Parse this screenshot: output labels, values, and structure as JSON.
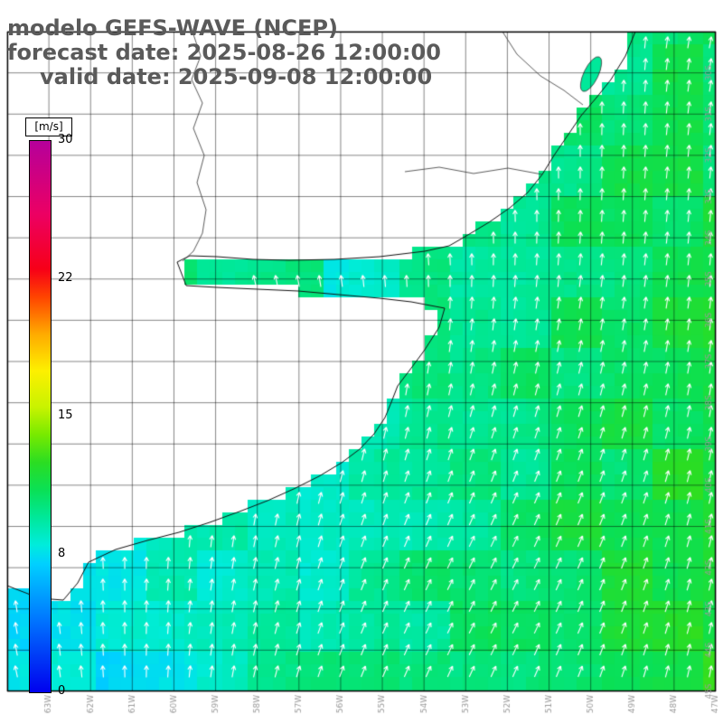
{
  "header": {
    "title_line": "modelo GEFS-WAVE (NCEP)",
    "forecast_line": "forecast date: 2025-08-26 12:00:00",
    "valid_line": "valid date: 2025-09-08 12:00:00"
  },
  "colorbar": {
    "unit": "[m/s]",
    "min": 0,
    "max": 30,
    "ticks": [
      {
        "label": "30",
        "pos": 0
      },
      {
        "label": "22",
        "pos": 0.25
      },
      {
        "label": "15",
        "pos": 0.5
      },
      {
        "label": "8",
        "pos": 0.75
      },
      {
        "label": "0",
        "pos": 1
      }
    ],
    "palette": [
      {
        "v": 0,
        "c": "#0000ee"
      },
      {
        "v": 4,
        "c": "#0077ff"
      },
      {
        "v": 7,
        "c": "#00d0ff"
      },
      {
        "v": 8,
        "c": "#00ecdc"
      },
      {
        "v": 9.5,
        "c": "#00e89a"
      },
      {
        "v": 11,
        "c": "#0ae055"
      },
      {
        "v": 12.5,
        "c": "#2bdd22"
      },
      {
        "v": 14,
        "c": "#77ea00"
      },
      {
        "v": 15.5,
        "c": "#c8f300"
      },
      {
        "v": 17.5,
        "c": "#fdf000"
      },
      {
        "v": 19.5,
        "c": "#ffaa00"
      },
      {
        "v": 21.5,
        "c": "#ff4400"
      },
      {
        "v": 23,
        "c": "#f70017"
      },
      {
        "v": 26,
        "c": "#ec0063"
      },
      {
        "v": 30,
        "c": "#b5009b"
      }
    ]
  },
  "map": {
    "field_unit": "m/s",
    "arrow_color": "#ffffff",
    "land_color": "#ffffff",
    "coast_color": "#111111",
    "grid_color": "#000000",
    "axis": {
      "right_labels": [
        "30S",
        "31S",
        "32S",
        "33S",
        "34S",
        "35S",
        "36S",
        "37S",
        "38S",
        "39S",
        "40S",
        "41S",
        "42S",
        "43S",
        "44S",
        "45S"
      ],
      "bottom_labels": [
        "63W",
        "62W",
        "61W",
        "60W",
        "59W",
        "58W",
        "57W",
        "56W",
        "55W",
        "54W",
        "53W",
        "52W",
        "51W",
        "50W",
        "49W",
        "48W",
        "47W"
      ]
    }
  }
}
